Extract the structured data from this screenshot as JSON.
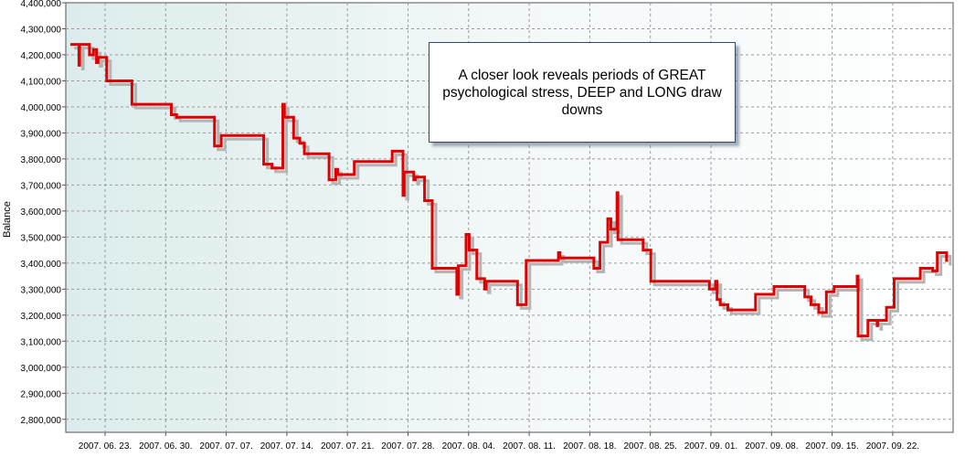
{
  "chart_data": {
    "type": "line",
    "ylabel": "Balance",
    "ylim": [
      2750000,
      4400000
    ],
    "y_ticks": [
      "4,400,000",
      "4,300,000",
      "4,200,000",
      "4,100,000",
      "4,000,000",
      "3,900,000",
      "3,800,000",
      "3,700,000",
      "3,600,000",
      "3,500,000",
      "3,400,000",
      "3,300,000",
      "3,200,000",
      "3,100,000",
      "3,000,000",
      "2,900,000",
      "2,800,000"
    ],
    "x_ticks": [
      "2007. 06. 23.",
      "2007. 06. 30.",
      "2007. 07. 07.",
      "2007. 07. 14.",
      "2007. 07. 21.",
      "2007. 07. 28.",
      "2007. 08. 04.",
      "2007. 08. 11.",
      "2007. 08. 18.",
      "2007. 08. 25.",
      "2007. 09. 01.",
      "2007. 09. 08.",
      "2007. 09. 15.",
      "2007. 09. 22."
    ],
    "grid": true,
    "series_color": "#e00000",
    "shadow_color": "#b4b4b4",
    "annotation": "A closer look reveals periods of GREAT psychological stress, DEEP and LONG draw downs",
    "steps": [
      [
        0.0,
        4240000
      ],
      [
        0.28,
        4160000
      ],
      [
        0.3,
        4240000
      ],
      [
        0.55,
        4240000
      ],
      [
        0.62,
        4200000
      ],
      [
        0.75,
        4220000
      ],
      [
        0.85,
        4170000
      ],
      [
        0.9,
        4190000
      ],
      [
        1.1,
        4190000
      ],
      [
        1.18,
        4100000
      ],
      [
        1.95,
        4100000
      ],
      [
        2.0,
        4010000
      ],
      [
        3.2,
        4010000
      ],
      [
        3.28,
        3970000
      ],
      [
        3.45,
        3960000
      ],
      [
        4.6,
        3960000
      ],
      [
        4.68,
        3850000
      ],
      [
        4.82,
        3850000
      ],
      [
        4.9,
        3890000
      ],
      [
        6.2,
        3890000
      ],
      [
        6.28,
        3780000
      ],
      [
        6.5,
        3780000
      ],
      [
        6.55,
        3765000
      ],
      [
        6.82,
        3765000
      ],
      [
        6.9,
        4010000
      ],
      [
        6.95,
        3960000
      ],
      [
        7.2,
        3960000
      ],
      [
        7.25,
        3880000
      ],
      [
        7.4,
        3880000
      ],
      [
        7.45,
        3860000
      ],
      [
        7.55,
        3860000
      ],
      [
        7.6,
        3820000
      ],
      [
        8.35,
        3820000
      ],
      [
        8.4,
        3720000
      ],
      [
        8.55,
        3720000
      ],
      [
        8.62,
        3760000
      ],
      [
        8.68,
        3740000
      ],
      [
        9.15,
        3740000
      ],
      [
        9.22,
        3790000
      ],
      [
        10.4,
        3790000
      ],
      [
        10.45,
        3830000
      ],
      [
        10.75,
        3830000
      ],
      [
        10.8,
        3660000
      ],
      [
        10.84,
        3750000
      ],
      [
        11.1,
        3750000
      ],
      [
        11.15,
        3720000
      ],
      [
        11.2,
        3730000
      ],
      [
        11.45,
        3730000
      ],
      [
        11.5,
        3640000
      ],
      [
        11.7,
        3640000
      ],
      [
        11.75,
        3380000
      ],
      [
        12.5,
        3380000
      ],
      [
        12.55,
        3280000
      ],
      [
        12.6,
        3390000
      ],
      [
        12.8,
        3390000
      ],
      [
        12.85,
        3510000
      ],
      [
        12.95,
        3450000
      ],
      [
        13.15,
        3450000
      ],
      [
        13.2,
        3340000
      ],
      [
        13.4,
        3340000
      ],
      [
        13.45,
        3300000
      ],
      [
        13.5,
        3330000
      ],
      [
        14.45,
        3330000
      ],
      [
        14.52,
        3240000
      ],
      [
        14.75,
        3240000
      ],
      [
        14.8,
        3410000
      ],
      [
        15.8,
        3410000
      ],
      [
        15.85,
        3440000
      ],
      [
        15.9,
        3420000
      ],
      [
        16.95,
        3420000
      ],
      [
        17.0,
        3380000
      ],
      [
        17.15,
        3380000
      ],
      [
        17.2,
        3480000
      ],
      [
        17.4,
        3480000
      ],
      [
        17.45,
        3570000
      ],
      [
        17.55,
        3530000
      ],
      [
        17.7,
        3530000
      ],
      [
        17.75,
        3670000
      ],
      [
        17.78,
        3490000
      ],
      [
        18.55,
        3490000
      ],
      [
        18.6,
        3450000
      ],
      [
        18.8,
        3450000
      ],
      [
        18.85,
        3330000
      ],
      [
        20.7,
        3330000
      ],
      [
        20.75,
        3300000
      ],
      [
        20.9,
        3300000
      ],
      [
        20.95,
        3330000
      ],
      [
        21.0,
        3260000
      ],
      [
        21.1,
        3240000
      ],
      [
        21.3,
        3240000
      ],
      [
        21.35,
        3220000
      ],
      [
        22.2,
        3220000
      ],
      [
        22.25,
        3280000
      ],
      [
        22.8,
        3280000
      ],
      [
        22.85,
        3310000
      ],
      [
        23.8,
        3310000
      ],
      [
        23.85,
        3270000
      ],
      [
        24.0,
        3270000
      ],
      [
        24.05,
        3240000
      ],
      [
        24.25,
        3240000
      ],
      [
        24.3,
        3210000
      ],
      [
        24.5,
        3210000
      ],
      [
        24.55,
        3290000
      ],
      [
        24.75,
        3290000
      ],
      [
        24.8,
        3310000
      ],
      [
        25.5,
        3310000
      ],
      [
        25.55,
        3350000
      ],
      [
        25.58,
        3120000
      ],
      [
        25.85,
        3120000
      ],
      [
        25.9,
        3180000
      ],
      [
        26.15,
        3180000
      ],
      [
        26.2,
        3160000
      ],
      [
        26.22,
        3180000
      ],
      [
        26.45,
        3180000
      ],
      [
        26.5,
        3230000
      ],
      [
        26.7,
        3230000
      ],
      [
        26.75,
        3340000
      ],
      [
        27.55,
        3340000
      ],
      [
        27.6,
        3380000
      ],
      [
        27.9,
        3380000
      ],
      [
        28.0,
        3370000
      ],
      [
        28.1,
        3370000
      ],
      [
        28.15,
        3440000
      ],
      [
        28.4,
        3440000
      ],
      [
        28.45,
        3410000
      ],
      [
        28.5,
        3410000
      ]
    ]
  }
}
